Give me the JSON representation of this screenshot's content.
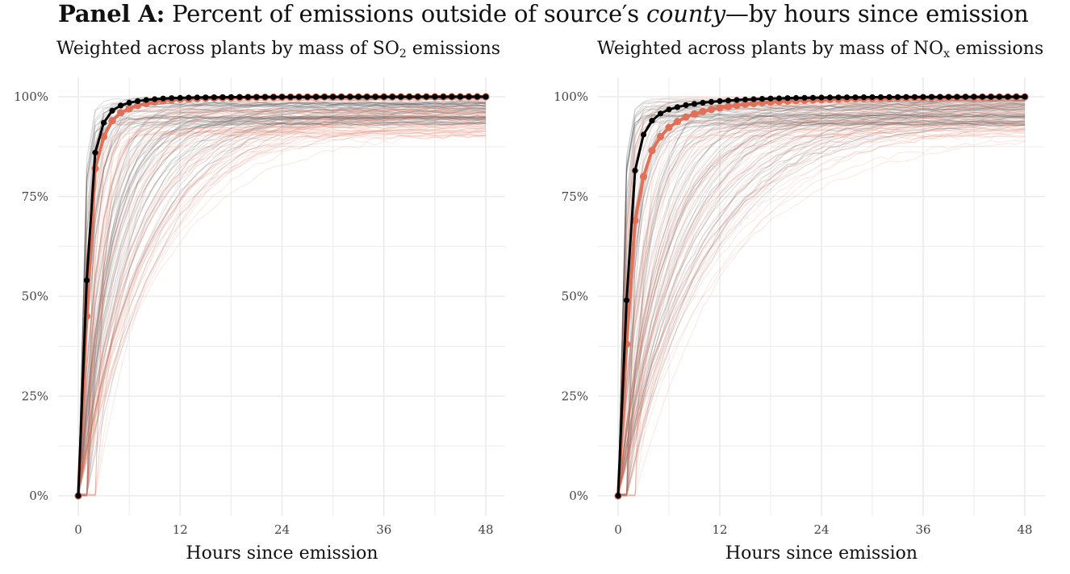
{
  "figure": {
    "panel_label": "Panel A:",
    "title_before": "Percent of emissions outside of source′s ",
    "title_italic": "county",
    "title_after": "—by hours since emission"
  },
  "panels": [
    {
      "subtitle_before": "Weighted across plants by mass of SO",
      "subtitle_sub": "2",
      "subtitle_after": " emissions"
    },
    {
      "subtitle_before": "Weighted across plants by mass of NO",
      "subtitle_sub": "x",
      "subtitle_after": " emissions"
    }
  ],
  "colors": {
    "black_series": "#000000",
    "orange_series": "#e07058",
    "grid": "#ebebeb",
    "background_lines": "#555555"
  },
  "chart_data": [
    {
      "type": "line",
      "xlabel": "Hours since emission",
      "ylabel": "",
      "x_ticks": [
        0,
        12,
        24,
        36,
        48
      ],
      "y_ticks": [
        "0%",
        "25%",
        "50%",
        "75%",
        "100%"
      ],
      "xlim": [
        0,
        48
      ],
      "ylim": [
        0,
        100
      ],
      "grid": true,
      "series": [
        {
          "color": "#000000",
          "x": [
            0,
            1,
            2,
            3,
            4,
            5,
            6,
            7,
            8,
            9,
            10,
            11,
            12,
            13,
            14,
            15,
            16,
            17,
            18,
            19,
            20,
            21,
            22,
            23,
            24,
            25,
            26,
            27,
            28,
            29,
            30,
            31,
            32,
            33,
            34,
            35,
            36,
            37,
            38,
            39,
            40,
            41,
            42,
            43,
            44,
            45,
            46,
            47,
            48
          ],
          "values": [
            0,
            54,
            86,
            93.5,
            96.5,
            97.8,
            98.5,
            98.9,
            99.2,
            99.4,
            99.55,
            99.65,
            99.72,
            99.77,
            99.81,
            99.84,
            99.86,
            99.88,
            99.9,
            99.91,
            99.92,
            99.93,
            99.94,
            99.94,
            99.95,
            99.95,
            99.96,
            99.96,
            99.96,
            99.97,
            99.97,
            99.97,
            99.97,
            99.98,
            99.98,
            99.98,
            99.98,
            99.98,
            99.98,
            99.99,
            99.99,
            99.99,
            99.99,
            99.99,
            99.99,
            99.99,
            99.99,
            100,
            100
          ]
        },
        {
          "color": "#e07058",
          "x": [
            0,
            1,
            2,
            3,
            4,
            5,
            6,
            7,
            8,
            9,
            10,
            11,
            12,
            13,
            14,
            15,
            16,
            17,
            18,
            19,
            20,
            21,
            22,
            23,
            24,
            25,
            26,
            27,
            28,
            29,
            30,
            31,
            32,
            33,
            34,
            35,
            36,
            37,
            38,
            39,
            40,
            41,
            42,
            43,
            44,
            45,
            46,
            47,
            48
          ],
          "values": [
            0,
            45,
            82,
            90,
            94,
            96,
            97,
            97.8,
            98.3,
            98.7,
            99,
            99.2,
            99.35,
            99.45,
            99.55,
            99.62,
            99.68,
            99.72,
            99.76,
            99.8,
            99.82,
            99.84,
            99.86,
            99.88,
            99.89,
            99.9,
            99.91,
            99.92,
            99.93,
            99.94,
            99.94,
            99.95,
            99.95,
            99.96,
            99.96,
            99.96,
            99.97,
            99.97,
            99.97,
            99.97,
            99.98,
            99.98,
            99.98,
            99.98,
            99.99,
            99.99,
            99.99,
            100,
            100
          ]
        }
      ]
    },
    {
      "type": "line",
      "xlabel": "Hours since emission",
      "ylabel": "",
      "x_ticks": [
        0,
        12,
        24,
        36,
        48
      ],
      "y_ticks": [
        "0%",
        "25%",
        "50%",
        "75%",
        "100%"
      ],
      "xlim": [
        0,
        48
      ],
      "ylim": [
        0,
        100
      ],
      "grid": true,
      "series": [
        {
          "color": "#000000",
          "x": [
            0,
            1,
            2,
            3,
            4,
            5,
            6,
            7,
            8,
            9,
            10,
            11,
            12,
            13,
            14,
            15,
            16,
            17,
            18,
            19,
            20,
            21,
            22,
            23,
            24,
            25,
            26,
            27,
            28,
            29,
            30,
            31,
            32,
            33,
            34,
            35,
            36,
            37,
            38,
            39,
            40,
            41,
            42,
            43,
            44,
            45,
            46,
            47,
            48
          ],
          "values": [
            0,
            49,
            81.5,
            90.5,
            94,
            95.8,
            96.8,
            97.4,
            97.9,
            98.2,
            98.5,
            98.7,
            98.9,
            99.05,
            99.2,
            99.3,
            99.4,
            99.48,
            99.55,
            99.6,
            99.65,
            99.7,
            99.73,
            99.76,
            99.79,
            99.81,
            99.83,
            99.85,
            99.86,
            99.88,
            99.89,
            99.9,
            99.91,
            99.92,
            99.93,
            99.93,
            99.94,
            99.95,
            99.95,
            99.96,
            99.96,
            99.97,
            99.97,
            99.97,
            99.98,
            99.98,
            99.98,
            99.99,
            99.99
          ]
        },
        {
          "color": "#e07058",
          "x": [
            0,
            1,
            2,
            3,
            4,
            5,
            6,
            7,
            8,
            9,
            10,
            11,
            12,
            13,
            14,
            15,
            16,
            17,
            18,
            19,
            20,
            21,
            22,
            23,
            24,
            25,
            26,
            27,
            28,
            29,
            30,
            31,
            32,
            33,
            34,
            35,
            36,
            37,
            38,
            39,
            40,
            41,
            42,
            43,
            44,
            45,
            46,
            47,
            48
          ],
          "values": [
            0,
            38,
            69,
            80,
            86.5,
            90,
            92.3,
            93.8,
            94.9,
            95.7,
            96.3,
            96.8,
            97.2,
            97.55,
            97.85,
            98.1,
            98.3,
            98.5,
            98.65,
            98.8,
            98.92,
            99.03,
            99.12,
            99.2,
            99.28,
            99.35,
            99.41,
            99.46,
            99.51,
            99.55,
            99.59,
            99.63,
            99.66,
            99.69,
            99.72,
            99.74,
            99.77,
            99.79,
            99.81,
            99.83,
            99.85,
            99.87,
            99.88,
            99.9,
            99.91,
            99.93,
            99.94,
            99.95,
            99.96
          ]
        }
      ]
    }
  ]
}
